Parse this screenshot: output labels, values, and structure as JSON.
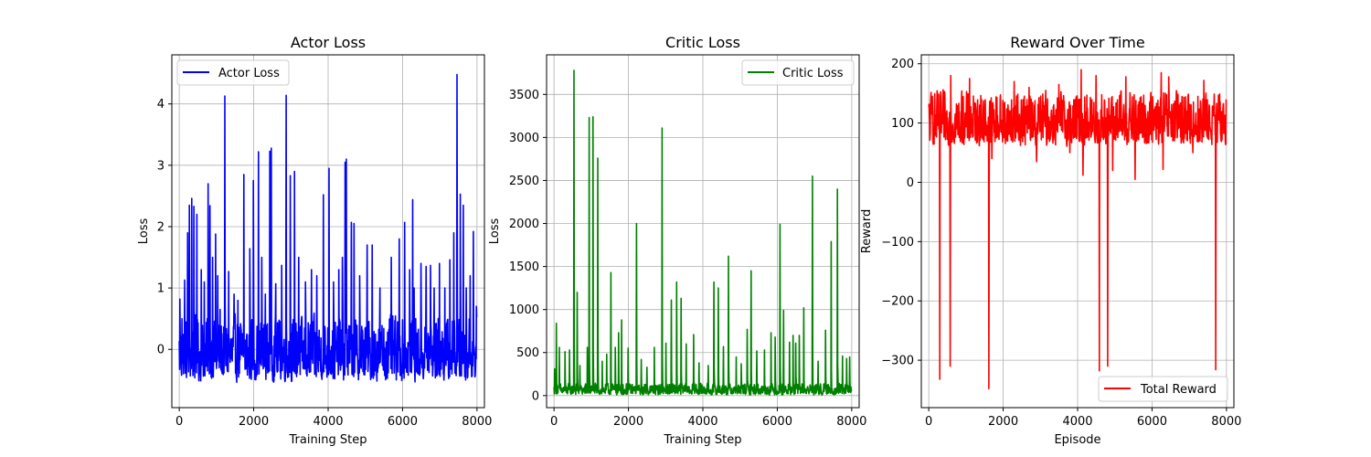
{
  "chart_data": [
    {
      "type": "line",
      "title": "Actor Loss",
      "xlabel": "Training Step",
      "ylabel": "Loss",
      "xlim": [
        -200,
        8200
      ],
      "ylim": [
        -0.95,
        4.8
      ],
      "xticks": [
        0,
        2000,
        4000,
        6000,
        8000
      ],
      "yticks": [
        0,
        1,
        2,
        3,
        4
      ],
      "grid": true,
      "legend": "upper left",
      "series": [
        {
          "name": "Actor Loss",
          "color": "#0000ff",
          "n_points": 8000,
          "baseline": [
            -0.55,
            0.6
          ],
          "spikes": [
            [
              20,
              0.82
            ],
            [
              80,
              0.5
            ],
            [
              150,
              1.13
            ],
            [
              230,
              1.9
            ],
            [
              280,
              2.35
            ],
            [
              340,
              2.46
            ],
            [
              400,
              2.33
            ],
            [
              480,
              2.2
            ],
            [
              600,
              1.3
            ],
            [
              680,
              1.1
            ],
            [
              780,
              2.7
            ],
            [
              830,
              2.34
            ],
            [
              900,
              1.5
            ],
            [
              980,
              1.88
            ],
            [
              1040,
              1.2
            ],
            [
              1100,
              0.65
            ],
            [
              1230,
              4.13
            ],
            [
              1330,
              1.27
            ],
            [
              1480,
              0.9
            ],
            [
              1580,
              0.8
            ],
            [
              1740,
              2.85
            ],
            [
              1900,
              1.64
            ],
            [
              2000,
              2.75
            ],
            [
              2130,
              3.22
            ],
            [
              2220,
              1.5
            ],
            [
              2320,
              0.9
            ],
            [
              2440,
              3.23
            ],
            [
              2480,
              3.28
            ],
            [
              2600,
              1.07
            ],
            [
              2760,
              1.37
            ],
            [
              2880,
              4.14
            ],
            [
              2990,
              2.83
            ],
            [
              3100,
              2.9
            ],
            [
              3210,
              1.5
            ],
            [
              3400,
              1.1
            ],
            [
              3560,
              1.3
            ],
            [
              3700,
              1.2
            ],
            [
              3880,
              2.52
            ],
            [
              4030,
              2.95
            ],
            [
              4150,
              1.1
            ],
            [
              4290,
              1.3
            ],
            [
              4390,
              1.5
            ],
            [
              4460,
              3.05
            ],
            [
              4490,
              3.1
            ],
            [
              4630,
              2.07
            ],
            [
              4700,
              2.05
            ],
            [
              4850,
              1.2
            ],
            [
              5050,
              1.7
            ],
            [
              5190,
              1.7
            ],
            [
              5400,
              1.0
            ],
            [
              5700,
              1.5
            ],
            [
              5920,
              1.8
            ],
            [
              6060,
              2.07
            ],
            [
              6200,
              1.3
            ],
            [
              6280,
              2.44
            ],
            [
              6320,
              1.0
            ],
            [
              6500,
              1.4
            ],
            [
              6640,
              1.35
            ],
            [
              6760,
              1.37
            ],
            [
              6850,
              1.0
            ],
            [
              7000,
              1.4
            ],
            [
              7140,
              1.0
            ],
            [
              7280,
              1.46
            ],
            [
              7380,
              1.9
            ],
            [
              7470,
              4.48
            ],
            [
              7560,
              2.53
            ],
            [
              7640,
              2.35
            ],
            [
              7720,
              1.0
            ],
            [
              7820,
              1.2
            ],
            [
              7910,
              1.92
            ],
            [
              7990,
              0.7
            ]
          ]
        }
      ]
    },
    {
      "type": "line",
      "title": "Critic Loss",
      "xlabel": "Training Step",
      "ylabel": "Loss",
      "xlim": [
        -200,
        8200
      ],
      "ylim": [
        -140,
        3960
      ],
      "xticks": [
        0,
        2000,
        4000,
        6000,
        8000
      ],
      "yticks": [
        0,
        500,
        1000,
        1500,
        2000,
        2500,
        3000,
        3500
      ],
      "grid": true,
      "legend": "upper right",
      "series": [
        {
          "name": "Critic Loss",
          "color": "#008000",
          "n_points": 8000,
          "baseline": [
            5,
            150
          ],
          "spikes": [
            [
              20,
              310
            ],
            [
              70,
              840
            ],
            [
              150,
              560
            ],
            [
              300,
              510
            ],
            [
              420,
              530
            ],
            [
              540,
              3780
            ],
            [
              630,
              1200
            ],
            [
              700,
              350
            ],
            [
              900,
              560
            ],
            [
              950,
              3230
            ],
            [
              1050,
              3240
            ],
            [
              1180,
              2760
            ],
            [
              1300,
              400
            ],
            [
              1420,
              480
            ],
            [
              1530,
              1430
            ],
            [
              1650,
              560
            ],
            [
              1740,
              730
            ],
            [
              1820,
              880
            ],
            [
              2000,
              550
            ],
            [
              2220,
              2000
            ],
            [
              2350,
              420
            ],
            [
              2500,
              330
            ],
            [
              2700,
              560
            ],
            [
              2910,
              3110
            ],
            [
              3010,
              610
            ],
            [
              3160,
              1110
            ],
            [
              3300,
              1320
            ],
            [
              3420,
              1130
            ],
            [
              3560,
              600
            ],
            [
              3760,
              710
            ],
            [
              3900,
              380
            ],
            [
              4150,
              350
            ],
            [
              4300,
              1320
            ],
            [
              4420,
              1250
            ],
            [
              4560,
              570
            ],
            [
              4690,
              1620
            ],
            [
              4900,
              450
            ],
            [
              5040,
              370
            ],
            [
              5200,
              770
            ],
            [
              5300,
              1450
            ],
            [
              5450,
              520
            ],
            [
              5660,
              530
            ],
            [
              5840,
              730
            ],
            [
              5950,
              680
            ],
            [
              6080,
              1990
            ],
            [
              6170,
              990
            ],
            [
              6330,
              620
            ],
            [
              6430,
              700
            ],
            [
              6500,
              610
            ],
            [
              6600,
              700
            ],
            [
              6720,
              1020
            ],
            [
              6950,
              2550
            ],
            [
              7100,
              400
            ],
            [
              7300,
              760
            ],
            [
              7450,
              1790
            ],
            [
              7620,
              2400
            ],
            [
              7760,
              460
            ],
            [
              7870,
              430
            ],
            [
              7950,
              450
            ]
          ]
        }
      ]
    },
    {
      "type": "line",
      "title": "Reward Over Time",
      "xlabel": "Episode",
      "ylabel": "Reward",
      "xlim": [
        -200,
        8200
      ],
      "ylim": [
        -380,
        215
      ],
      "xticks": [
        0,
        2000,
        4000,
        6000,
        8000
      ],
      "yticks": [
        200,
        100,
        0,
        -100,
        -200,
        -300
      ],
      "grid": true,
      "legend": "lower right",
      "series": [
        {
          "name": "Total Reward",
          "color": "#ff0000",
          "n_points": 8000,
          "baseline": [
            60,
            160
          ],
          "spikes": [
            [
              300,
              -332
            ],
            [
              580,
              -310
            ],
            [
              1620,
              -348
            ],
            [
              4590,
              -318
            ],
            [
              4810,
              -310
            ],
            [
              7720,
              -316
            ],
            [
              100,
              145
            ],
            [
              600,
              180
            ],
            [
              1100,
              175
            ],
            [
              2300,
              170
            ],
            [
              2700,
              160
            ],
            [
              3500,
              165
            ],
            [
              4100,
              190
            ],
            [
              4500,
              180
            ],
            [
              5300,
              178
            ],
            [
              6250,
              185
            ],
            [
              6450,
              178
            ],
            [
              7400,
              172
            ],
            [
              1700,
              40
            ],
            [
              2900,
              35
            ],
            [
              3800,
              50
            ],
            [
              4150,
              12
            ],
            [
              4950,
              20
            ],
            [
              5550,
              5
            ],
            [
              6300,
              22
            ],
            [
              7100,
              50
            ]
          ]
        }
      ]
    }
  ]
}
